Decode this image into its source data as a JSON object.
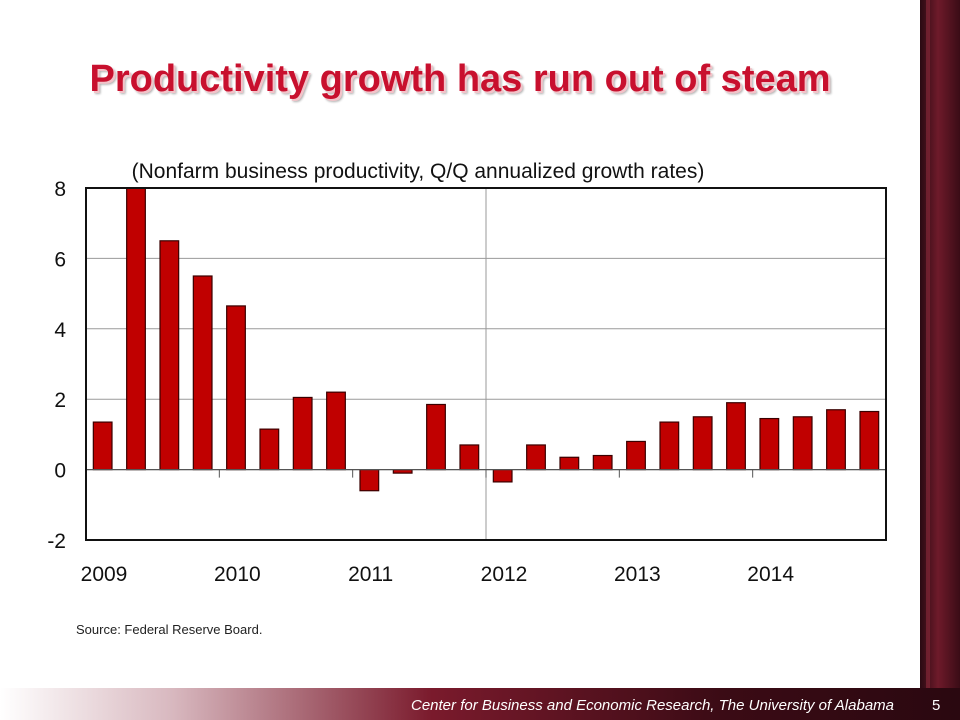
{
  "slide": {
    "title": "Productivity growth has run out of steam",
    "source": "Source:  Federal Reserve Board.",
    "footer": "Center for Business and Economic Research, The University of Alabama",
    "page_number": "5"
  },
  "colors": {
    "bar_fill": "#c00000",
    "bar_stroke": "#3a0000",
    "title": "#c8102e",
    "accent_dark": "#3b0b15"
  },
  "chart_data": {
    "type": "bar",
    "subtitle": "(Nonfarm business productivity, Q/Q annualized growth rates)",
    "ylim": [
      -2,
      8
    ],
    "yticks": [
      -2,
      0,
      2,
      4,
      6,
      8
    ],
    "ytick_labels": [
      "-2",
      "0",
      "2",
      "4",
      "6",
      "8"
    ],
    "year_labels": [
      "2009",
      "2010",
      "2011",
      "2012",
      "2013",
      "2014"
    ],
    "quarters_per_year": 4,
    "grid": true,
    "categories": [
      "2009Q1",
      "2009Q2",
      "2009Q3",
      "2009Q4",
      "2010Q1",
      "2010Q2",
      "2010Q3",
      "2010Q4",
      "2011Q1",
      "2011Q2",
      "2011Q3",
      "2011Q4",
      "2012Q1",
      "2012Q2",
      "2012Q3",
      "2012Q4",
      "2013Q1",
      "2013Q2",
      "2013Q3",
      "2013Q4",
      "2014Q1",
      "2014Q2",
      "2014Q3",
      "2014Q4"
    ],
    "values": [
      1.35,
      8.0,
      6.5,
      5.5,
      4.65,
      1.15,
      2.05,
      2.2,
      -0.6,
      -0.1,
      1.85,
      0.7,
      -0.35,
      0.7,
      0.35,
      0.4,
      0.8,
      1.35,
      1.5,
      1.9,
      1.45,
      1.5,
      1.7,
      1.65
    ]
  }
}
